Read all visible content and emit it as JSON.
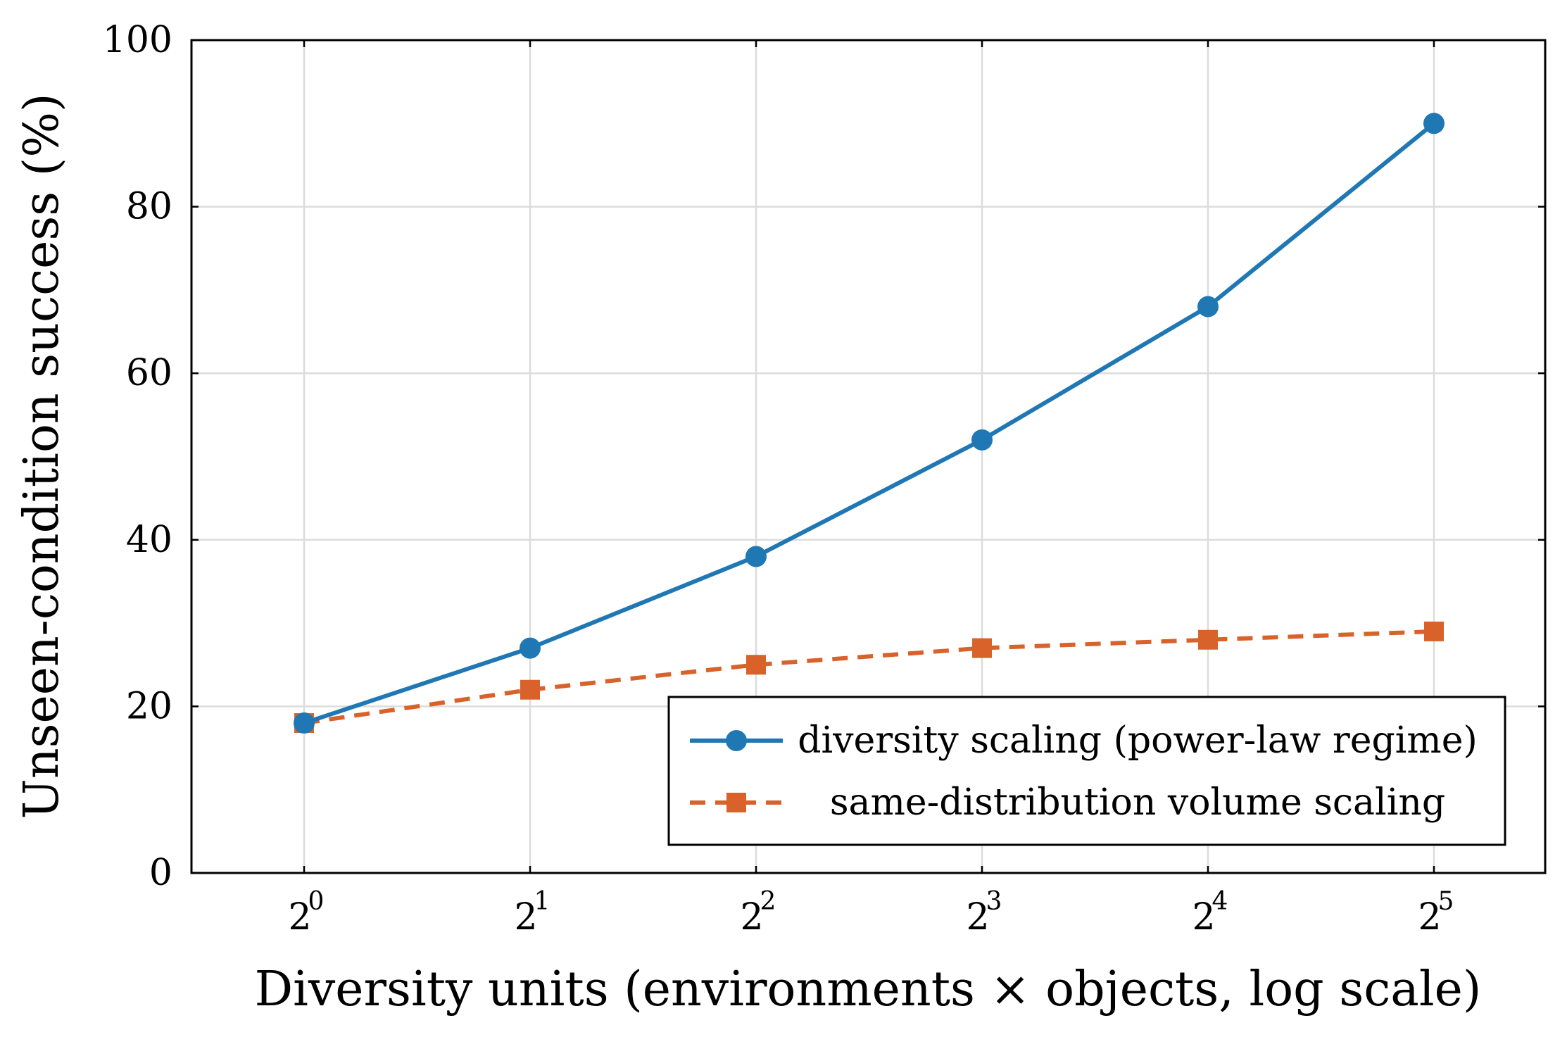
{
  "chart_data": {
    "type": "line",
    "xlabel": "Diversity units (environments × objects, log scale)",
    "ylabel": "Unseen-condition success (%)",
    "x_scale": "log2",
    "x": [
      1,
      2,
      4,
      8,
      16,
      32
    ],
    "x_tick_base": "2",
    "x_tick_exponents": [
      "0",
      "1",
      "2",
      "3",
      "4",
      "5"
    ],
    "ylim": [
      0,
      100
    ],
    "y_ticks": [
      0,
      20,
      40,
      60,
      80,
      100
    ],
    "grid": true,
    "legend_position": "bottom-right",
    "series": [
      {
        "name": "diversity scaling (power-law regime)",
        "values": [
          18,
          27,
          38,
          52,
          68,
          90
        ],
        "color": "#1f77b4",
        "marker": "circle",
        "line_style": "solid"
      },
      {
        "name": "same-distribution volume scaling",
        "values": [
          18,
          22,
          25,
          27,
          28,
          29
        ],
        "color": "#d9622b",
        "marker": "square",
        "line_style": "dashed"
      }
    ]
  }
}
